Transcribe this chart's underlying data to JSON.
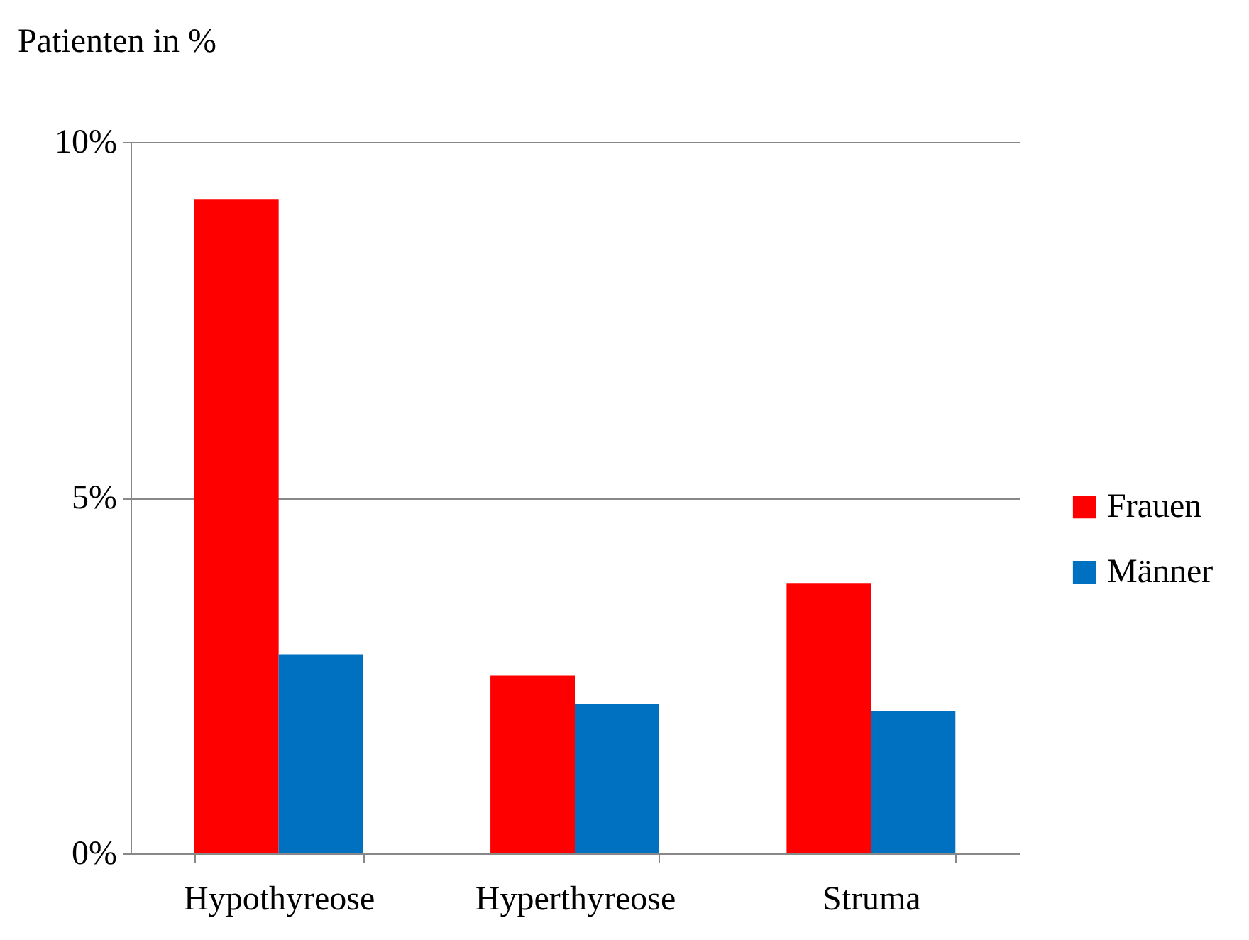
{
  "chart_data": {
    "type": "bar",
    "ylabel": "Patienten in %",
    "categories": [
      "Hypothyreose",
      "Hyperthyreose",
      "Struma"
    ],
    "series": [
      {
        "name": "Frauen",
        "color": "#ff0000",
        "values": [
          9.2,
          2.5,
          3.8
        ]
      },
      {
        "name": "Männer",
        "color": "#0070c0",
        "values": [
          2.8,
          2.1,
          2.0
        ]
      }
    ],
    "ylim": [
      0,
      10
    ],
    "yticks": [
      {
        "value": 0,
        "label": "0%"
      },
      {
        "value": 5,
        "label": "5%"
      },
      {
        "value": 10,
        "label": "10%"
      }
    ],
    "grid": "y",
    "legend": "right"
  }
}
